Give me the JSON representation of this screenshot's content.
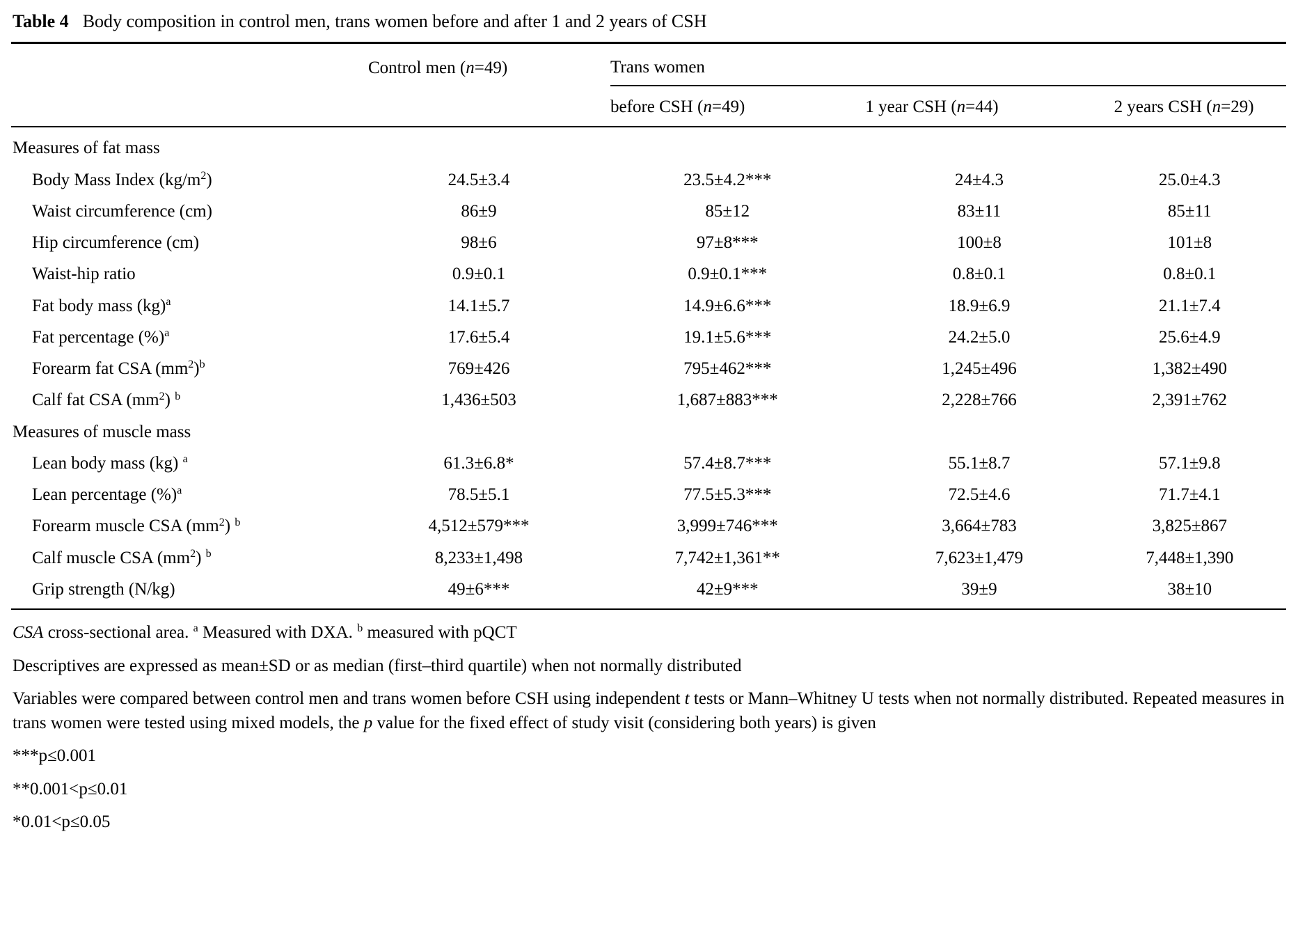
{
  "title": {
    "label": "Table 4",
    "caption": "Body composition in control men, trans women before and after 1 and 2 years of CSH"
  },
  "table": {
    "group_header": "Trans women",
    "columns": [
      "Control men (~{n}=49)",
      "before CSH (~{n}=49)",
      "1 year CSH (~{n}=44)",
      "2 years CSH (~{n}=29)"
    ],
    "sections": [
      {
        "title": "Measures of fat mass",
        "rows": [
          {
            "label": "Body Mass Index (kg/m^{2})",
            "values": [
              "24.5±3.4",
              "23.5±4.2***",
              "24±4.3",
              "25.0±4.3"
            ]
          },
          {
            "label": "Waist circumference (cm)",
            "values": [
              "86±9",
              "85±12",
              "83±11",
              "85±11"
            ]
          },
          {
            "label": "Hip circumference (cm)",
            "values": [
              "98±6",
              "97±8***",
              "100±8",
              "101±8"
            ]
          },
          {
            "label": "Waist-hip ratio",
            "values": [
              "0.9±0.1",
              "0.9±0.1***",
              "0.8±0.1",
              "0.8±0.1"
            ]
          },
          {
            "label": "Fat body mass (kg)^{a}",
            "values": [
              "14.1±5.7",
              "14.9±6.6***",
              "18.9±6.9",
              "21.1±7.4"
            ]
          },
          {
            "label": "Fat percentage (%)^{a}",
            "values": [
              "17.6±5.4",
              "19.1±5.6***",
              "24.2±5.0",
              "25.6±4.9"
            ]
          },
          {
            "label": "Forearm fat CSA (mm^{2})^{b}",
            "values": [
              "769±426",
              "795±462***",
              "1,245±496",
              "1,382±490"
            ]
          },
          {
            "label": "Calf fat CSA (mm^{2}) ^{b}",
            "values": [
              "1,436±503",
              "1,687±883***",
              "2,228±766",
              "2,391±762"
            ]
          }
        ]
      },
      {
        "title": "Measures of muscle mass",
        "rows": [
          {
            "label": "Lean body mass (kg) ^{a}",
            "values": [
              "61.3±6.8*",
              "57.4±8.7***",
              "55.1±8.7",
              "57.1±9.8"
            ]
          },
          {
            "label": "Lean percentage (%)^{a}",
            "values": [
              "78.5±5.1",
              "77.5±5.3***",
              "72.5±4.6",
              "71.7±4.1"
            ]
          },
          {
            "label": "Forearm muscle CSA (mm^{2}) ^{b}",
            "values": [
              "4,512±579***",
              "3,999±746***",
              "3,664±783",
              "3,825±867"
            ]
          },
          {
            "label": "Calf muscle CSA (mm^{2}) ^{b}",
            "values": [
              "8,233±1,498",
              "7,742±1,361**",
              "7,623±1,479",
              "7,448±1,390"
            ]
          },
          {
            "label": "Grip strength (N/kg)",
            "values": [
              "49±6***",
              "42±9***",
              "39±9",
              "38±10"
            ]
          }
        ]
      }
    ]
  },
  "footnotes": [
    "~{CSA} cross-sectional area. ^{a} Measured with DXA. ^{b} measured with pQCT",
    "Descriptives are expressed as mean±SD or as median (first–third quartile) when not normally distributed",
    "Variables were compared between control men and trans women before CSH using independent ~{t} tests or Mann–Whitney U tests when not normally distributed. Repeated measures in trans women were tested using mixed models, the ~{p} value for the fixed effect of study visit (considering both years) is given",
    "***p≤0.001",
    "**0.001<p≤0.01",
    "*0.01<p≤0.05"
  ]
}
